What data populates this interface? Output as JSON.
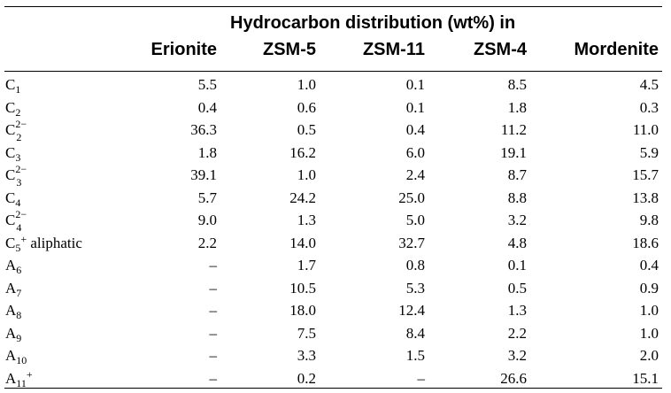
{
  "table": {
    "group_header": "Hydrocarbon distribution (wt%) in",
    "columns": [
      "Erionite",
      "ZSM-5",
      "ZSM-11",
      "ZSM-4",
      "Mordenite"
    ],
    "rows": [
      {
        "base": "C",
        "sub": "1",
        "sup": "",
        "suffix": "",
        "values": [
          "5.5",
          "1.0",
          "0.1",
          "8.5",
          "4.5"
        ]
      },
      {
        "base": "C",
        "sub": "2",
        "sup": "",
        "suffix": "",
        "values": [
          "0.4",
          "0.6",
          "0.1",
          "1.8",
          "0.3"
        ]
      },
      {
        "base": "C",
        "sub": "2",
        "sup": "2−",
        "suffix": "",
        "values": [
          "36.3",
          "0.5",
          "0.4",
          "11.2",
          "11.0"
        ]
      },
      {
        "base": "C",
        "sub": "3",
        "sup": "",
        "suffix": "",
        "values": [
          "1.8",
          "16.2",
          "6.0",
          "19.1",
          "5.9"
        ]
      },
      {
        "base": "C",
        "sub": "3",
        "sup": "2−",
        "suffix": "",
        "values": [
          "39.1",
          "1.0",
          "2.4",
          "8.7",
          "15.7"
        ]
      },
      {
        "base": "C",
        "sub": "4",
        "sup": "",
        "suffix": "",
        "values": [
          "5.7",
          "24.2",
          "25.0",
          "8.8",
          "13.8"
        ]
      },
      {
        "base": "C",
        "sub": "4",
        "sup": "2−",
        "suffix": "",
        "values": [
          "9.0",
          "1.3",
          "5.0",
          "3.2",
          "9.8"
        ]
      },
      {
        "base": "C",
        "sub": "5",
        "sup": "+",
        "suffix": " aliphatic",
        "values": [
          "2.2",
          "14.0",
          "32.7",
          "4.8",
          "18.6"
        ]
      },
      {
        "base": "A",
        "sub": "6",
        "sup": "",
        "suffix": "",
        "values": [
          "–",
          "1.7",
          "0.8",
          "0.1",
          "0.4"
        ]
      },
      {
        "base": "A",
        "sub": "7",
        "sup": "",
        "suffix": "",
        "values": [
          "–",
          "10.5",
          "5.3",
          "0.5",
          "0.9"
        ]
      },
      {
        "base": "A",
        "sub": "8",
        "sup": "",
        "suffix": "",
        "values": [
          "–",
          "18.0",
          "12.4",
          "1.3",
          "1.0"
        ]
      },
      {
        "base": "A",
        "sub": "9",
        "sup": "",
        "suffix": "",
        "values": [
          "–",
          "7.5",
          "8.4",
          "2.2",
          "1.0"
        ]
      },
      {
        "base": "A",
        "sub": "10",
        "sup": "",
        "suffix": "",
        "values": [
          "–",
          "3.3",
          "1.5",
          "3.2",
          "2.0"
        ]
      },
      {
        "base": "A",
        "sub": "11",
        "sup": "+",
        "suffix": "",
        "values": [
          "–",
          "0.2",
          "–",
          "26.6",
          "15.1"
        ]
      }
    ]
  }
}
